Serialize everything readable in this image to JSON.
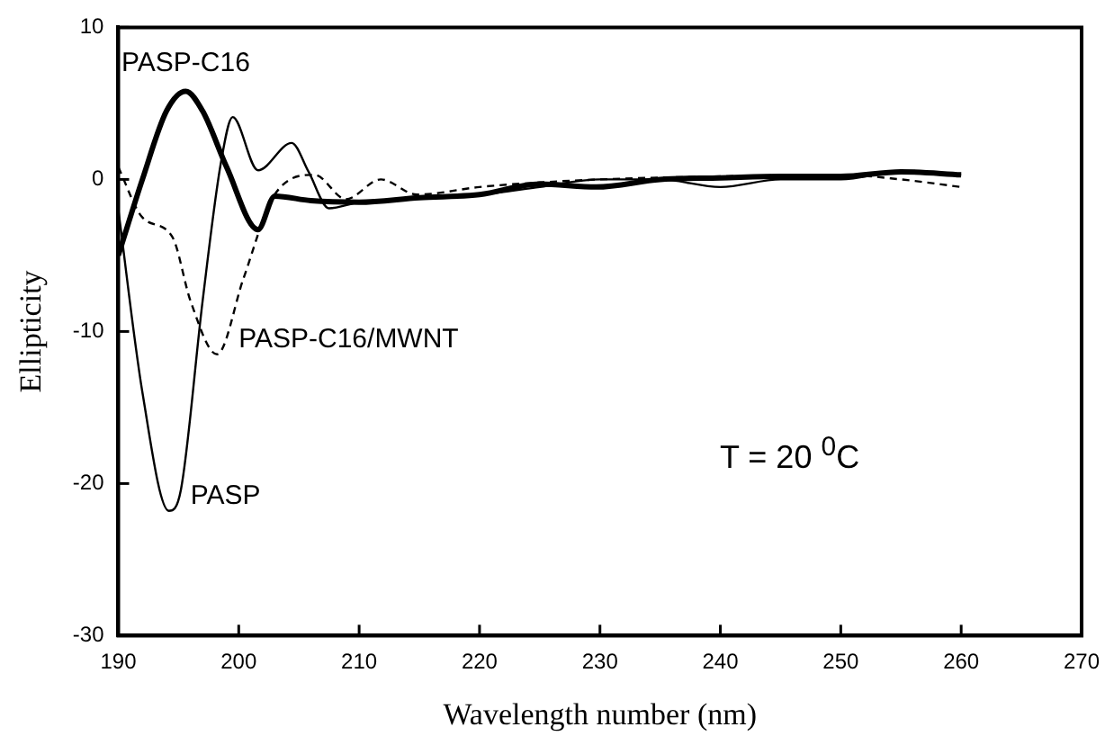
{
  "chart_data": {
    "type": "line",
    "xlabel": "Wavelength number (nm)",
    "ylabel": "Ellipticity",
    "xlim": [
      190,
      270
    ],
    "xticks": [
      190,
      200,
      210,
      220,
      230,
      240,
      250,
      260,
      270
    ],
    "ylim": [
      -30,
      10
    ],
    "yticks": [
      -30,
      -20,
      -10,
      0,
      10
    ],
    "grid": false,
    "legend": false,
    "marker": "none",
    "annotations": [
      "T = 20 $^{0}$C"
    ],
    "series": [
      {
        "name": "PASP-C16",
        "color": "#000000",
        "line_style": "solid",
        "x": [
          190,
          192,
          194,
          195.6,
          197,
          199,
          201.6,
          203,
          206,
          210,
          215,
          220,
          225,
          229.7,
          235,
          240,
          245,
          250,
          255,
          260
        ],
        "values": [
          -5,
          0,
          4.5,
          5.8,
          4.5,
          0.8,
          -3.3,
          -1.1,
          -1.4,
          -1.5,
          -1.2,
          -1,
          -0.3,
          -0.5,
          0,
          0.1,
          0.2,
          0.2,
          0.5,
          0.3
        ]
      },
      {
        "name": "PASP",
        "color": "#000000",
        "line_style": "solid",
        "x": [
          190,
          192,
          194.2,
          195.2,
          197,
          198.5,
          199.5,
          201.6,
          204.4,
          205.8,
          207.5,
          210,
          215,
          220,
          225,
          230,
          235,
          240,
          245,
          250,
          255,
          260
        ],
        "values": [
          -2,
          -14,
          -21.8,
          -20.4,
          -8,
          1,
          4.1,
          0.6,
          2.4,
          0.5,
          -1.9,
          -1.5,
          -1.2,
          -1,
          -0.5,
          0,
          0,
          -0.5,
          0,
          0,
          0.5,
          0.3
        ]
      },
      {
        "name": "PASP-C16/MWNT",
        "color": "#000000",
        "line_style": "dashed",
        "x": [
          190,
          192,
          194.5,
          196,
          198.2,
          200.4,
          202.9,
          206.3,
          208.9,
          211.8,
          214.8,
          220,
          225,
          230,
          240,
          250,
          255,
          260
        ],
        "values": [
          0.8,
          -2.5,
          -3.8,
          -8,
          -11.5,
          -6.5,
          -1.1,
          0.3,
          -1.3,
          0,
          -1,
          -0.5,
          -0.2,
          0,
          0.2,
          0.3,
          0,
          -0.5
        ]
      }
    ]
  }
}
